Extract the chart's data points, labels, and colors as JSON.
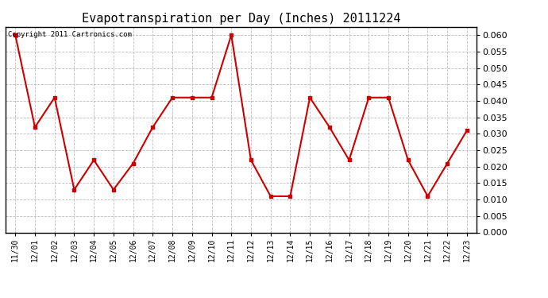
{
  "title": "Evapotranspiration per Day (Inches) 20111224",
  "copyright_text": "Copyright 2011 Cartronics.com",
  "labels": [
    "11/30",
    "12/01",
    "12/02",
    "12/03",
    "12/04",
    "12/05",
    "12/06",
    "12/07",
    "12/08",
    "12/09",
    "12/10",
    "12/11",
    "12/12",
    "12/13",
    "12/14",
    "12/15",
    "12/16",
    "12/17",
    "12/18",
    "12/19",
    "12/20",
    "12/21",
    "12/22",
    "12/23"
  ],
  "values": [
    0.06,
    0.032,
    0.041,
    0.013,
    0.022,
    0.013,
    0.021,
    0.032,
    0.041,
    0.041,
    0.041,
    0.06,
    0.022,
    0.011,
    0.011,
    0.041,
    0.032,
    0.022,
    0.041,
    0.041,
    0.022,
    0.011,
    0.021,
    0.031
  ],
  "line_color": "#cc0000",
  "marker": "s",
  "marker_size": 3,
  "ylim": [
    0.0,
    0.0625
  ],
  "yticks": [
    0.0,
    0.005,
    0.01,
    0.015,
    0.02,
    0.025,
    0.03,
    0.035,
    0.04,
    0.045,
    0.05,
    0.055,
    0.06
  ],
  "background_color": "#ffffff",
  "grid_color": "#bbbbbb",
  "title_fontsize": 11,
  "copyright_fontsize": 6.5,
  "tick_fontsize": 7,
  "ytick_fontsize": 8
}
